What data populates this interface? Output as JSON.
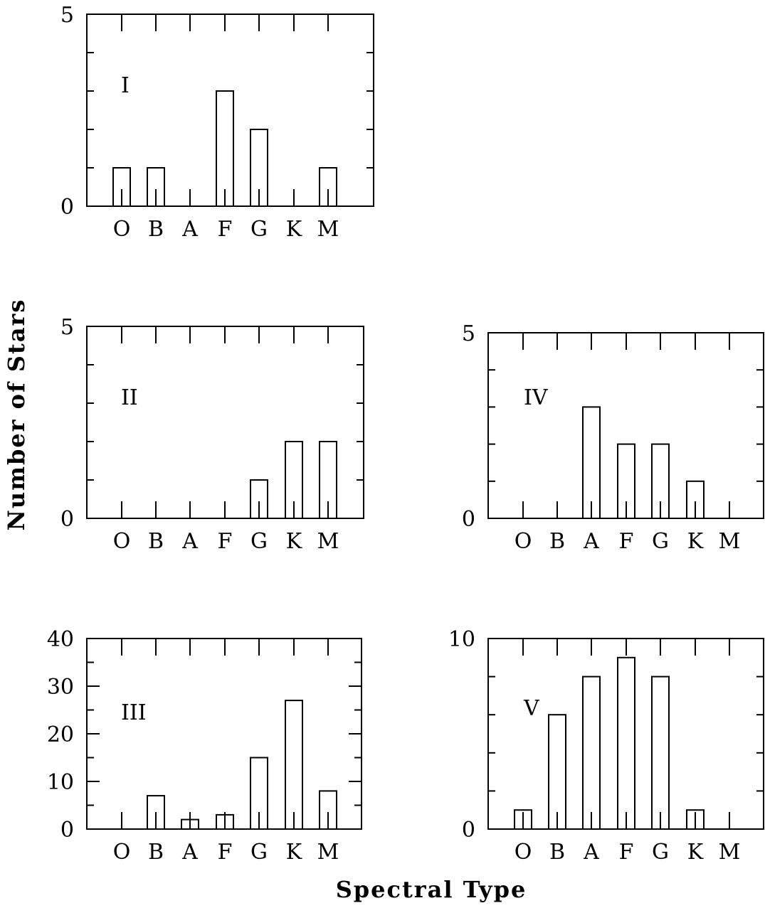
{
  "figure": {
    "xlabel": "Spectral Type",
    "ylabel": "Number of Stars"
  },
  "chart_data": [
    {
      "type": "bar",
      "panel_label": "I",
      "categories": [
        "O",
        "B",
        "A",
        "F",
        "G",
        "K",
        "M"
      ],
      "values": [
        1,
        1,
        0,
        3,
        2,
        0,
        1
      ],
      "ylim": [
        0,
        5
      ],
      "ytick_labels": [
        "0",
        "5"
      ],
      "ytick_major": [
        0,
        5
      ],
      "ytick_minor": [
        1,
        2,
        3,
        4
      ]
    },
    {
      "type": "bar",
      "panel_label": "II",
      "categories": [
        "O",
        "B",
        "A",
        "F",
        "G",
        "K",
        "M"
      ],
      "values": [
        0,
        0,
        0,
        0,
        1,
        2,
        2
      ],
      "ylim": [
        0,
        5
      ],
      "ytick_labels": [
        "0",
        "5"
      ],
      "ytick_major": [
        0,
        5
      ],
      "ytick_minor": [
        1,
        2,
        3,
        4
      ]
    },
    {
      "type": "bar",
      "panel_label": "IV",
      "categories": [
        "O",
        "B",
        "A",
        "F",
        "G",
        "K",
        "M"
      ],
      "values": [
        0,
        0,
        3,
        2,
        2,
        1,
        0
      ],
      "ylim": [
        0,
        5
      ],
      "ytick_labels": [
        "0",
        "5"
      ],
      "ytick_major": [
        0,
        5
      ],
      "ytick_minor": [
        1,
        2,
        3,
        4
      ]
    },
    {
      "type": "bar",
      "panel_label": "III",
      "categories": [
        "O",
        "B",
        "A",
        "F",
        "G",
        "K",
        "M"
      ],
      "values": [
        0,
        7,
        2,
        3,
        15,
        27,
        8
      ],
      "ylim": [
        0,
        40
      ],
      "ytick_labels": [
        "0",
        "10",
        "20",
        "30",
        "40"
      ],
      "ytick_major": [
        0,
        10,
        20,
        30,
        40
      ],
      "ytick_minor": [
        5,
        15,
        25,
        35
      ]
    },
    {
      "type": "bar",
      "panel_label": "V",
      "categories": [
        "O",
        "B",
        "A",
        "F",
        "G",
        "K",
        "M"
      ],
      "values": [
        1,
        6,
        8,
        9,
        8,
        1,
        0
      ],
      "ylim": [
        0,
        10
      ],
      "ytick_labels": [
        "0",
        "10"
      ],
      "ytick_major": [
        0,
        10
      ],
      "ytick_minor": [
        2,
        4,
        6,
        8
      ]
    }
  ]
}
